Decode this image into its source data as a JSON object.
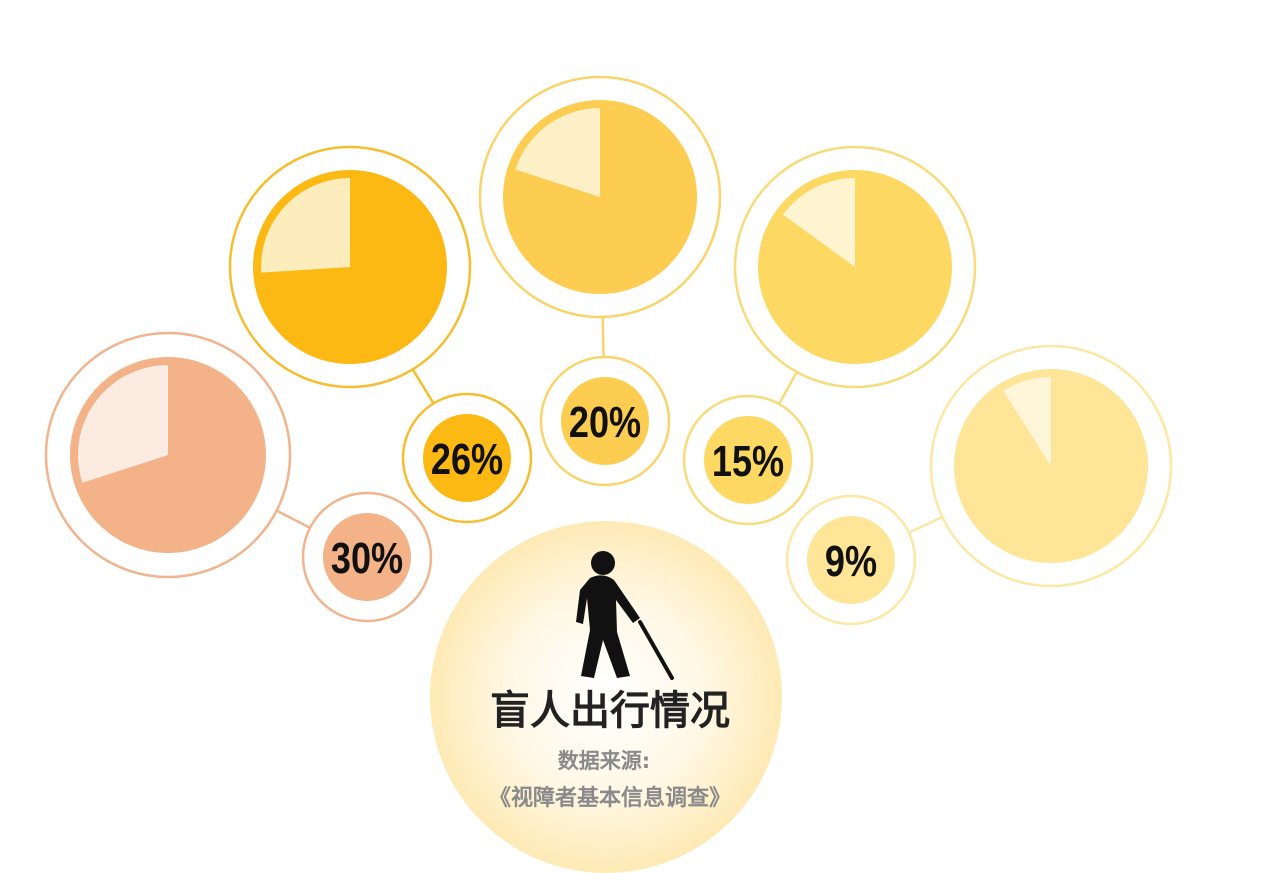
{
  "chart_data": {
    "type": "pie",
    "title": "盲人出行情况",
    "source_label": "数据来源:",
    "source_name": "《视障者基本信息调查》",
    "series": [
      {
        "value": 30,
        "label": "30%",
        "color": "#F3B287",
        "light": "#FCEBE0",
        "ring": "#F0B48E"
      },
      {
        "value": 26,
        "label": "26%",
        "color": "#FDB913",
        "light": "#FEEDBC",
        "ring": "#F6BE2E"
      },
      {
        "value": 20,
        "label": "20%",
        "color": "#FDCD52",
        "light": "#FEF0C6",
        "ring": "#FAD46B"
      },
      {
        "value": 15,
        "label": "15%",
        "color": "#FDD863",
        "light": "#FEF4CF",
        "ring": "#F8DB7A"
      },
      {
        "value": 9,
        "label": "9%",
        "color": "#FEE597",
        "light": "#FFF6DA",
        "ring": "#FCE7A3"
      }
    ]
  },
  "colors": {
    "title": "#222222",
    "source": "#8a8a8a",
    "icon": "#111111",
    "glow": "#FEEFC8"
  },
  "icon": "blind-person-with-cane-icon"
}
